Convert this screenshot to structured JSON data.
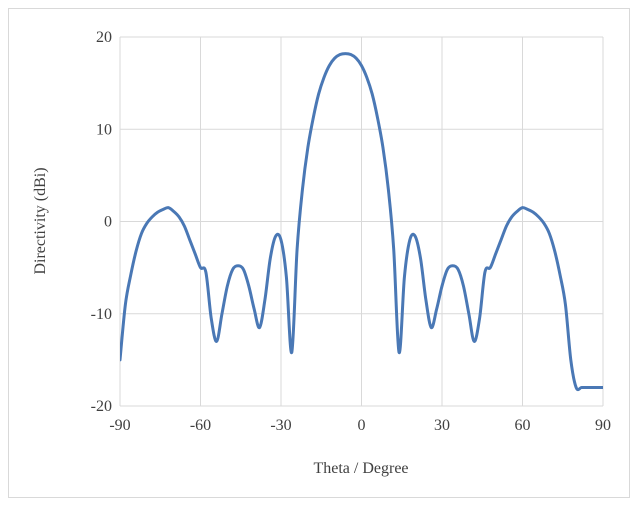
{
  "chart_data": {
    "type": "line",
    "title": "",
    "xlabel": "Theta / Degree",
    "ylabel": "Directivity (dBi)",
    "xlim": [
      -90,
      90
    ],
    "ylim": [
      -20,
      20
    ],
    "xticks": [
      -90,
      -60,
      -30,
      0,
      30,
      60,
      90
    ],
    "yticks": [
      20,
      10,
      0,
      -10,
      -20
    ],
    "xtick_labels": [
      "-90",
      "-60",
      "-30",
      "0",
      "30",
      "60",
      "90"
    ],
    "ytick_labels": [
      "20",
      "10",
      "0",
      "-10",
      "-20"
    ],
    "grid": true,
    "legend": "none",
    "series": [
      {
        "color": "#4a78b5",
        "x": [
          -90,
          -88,
          -86,
          -84,
          -82,
          -80,
          -78,
          -76,
          -74,
          -72,
          -70,
          -68,
          -66,
          -64,
          -62,
          -60,
          -58,
          -56,
          -54,
          -52,
          -50,
          -48,
          -46,
          -44,
          -42,
          -40,
          -38,
          -36,
          -34,
          -32,
          -30,
          -28,
          -26,
          -24,
          -22,
          -20,
          -18,
          -16,
          -14,
          -12,
          -10,
          -8,
          -6,
          -4,
          -2,
          0,
          2,
          4,
          6,
          8,
          10,
          12,
          14,
          16,
          18,
          20,
          22,
          24,
          26,
          28,
          30,
          32,
          34,
          36,
          38,
          40,
          42,
          44,
          46,
          48,
          50,
          52,
          54,
          56,
          58,
          60,
          62,
          64,
          66,
          68,
          70,
          72,
          74,
          76,
          78,
          80,
          82,
          84,
          86,
          88,
          90
        ],
        "y": [
          -15.0,
          -9.0,
          -5.8,
          -3.2,
          -1.3,
          -0.2,
          0.5,
          1.0,
          1.3,
          1.5,
          1.1,
          0.5,
          -0.5,
          -2.0,
          -3.5,
          -5.0,
          -5.5,
          -10.5,
          -13.0,
          -10.0,
          -7.0,
          -5.2,
          -4.8,
          -5.2,
          -7.0,
          -9.5,
          -11.5,
          -8.5,
          -4.0,
          -1.6,
          -2.0,
          -6.0,
          -14.2,
          -3.0,
          3.5,
          8.0,
          11.2,
          13.8,
          15.6,
          16.9,
          17.7,
          18.1,
          18.2,
          18.1,
          17.7,
          16.9,
          15.6,
          13.8,
          11.2,
          8.0,
          3.5,
          -3.0,
          -14.2,
          -6.0,
          -2.0,
          -1.6,
          -4.0,
          -8.5,
          -11.5,
          -9.5,
          -7.0,
          -5.2,
          -4.8,
          -5.2,
          -7.0,
          -10.0,
          -13.0,
          -10.5,
          -5.5,
          -5.0,
          -3.5,
          -2.0,
          -0.5,
          0.5,
          1.1,
          1.5,
          1.3,
          1.0,
          0.5,
          -0.2,
          -1.3,
          -3.2,
          -5.8,
          -9.0,
          -15.0,
          -18.0,
          -18.0,
          -18.0,
          -18.0,
          -18.0,
          -18.0
        ]
      }
    ]
  }
}
